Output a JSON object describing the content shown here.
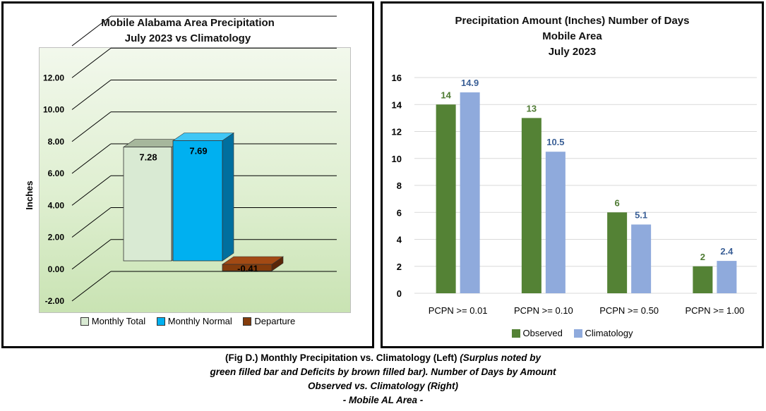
{
  "chart_data": [
    {
      "type": "bar",
      "title": "Mobile Alabama Area Precipitation\nJuly 2023 vs Climatology",
      "title_lines": [
        "Mobile Alabama Area Precipitation",
        "July 2023 vs Climatology"
      ],
      "ylabel": "Inches",
      "xlabel": "",
      "ylim": [
        -2,
        14
      ],
      "yticks": [
        "-2.00",
        "0.00",
        "2.00",
        "4.00",
        "6.00",
        "8.00",
        "10.00",
        "12.00"
      ],
      "grid": true,
      "style": "3d",
      "legend_position": "bottom",
      "series": [
        {
          "name": "Monthly Total",
          "values": [
            7.28
          ],
          "label": "7.28",
          "color": "#d9ead3"
        },
        {
          "name": "Monthly Normal",
          "values": [
            7.69
          ],
          "label": "7.69",
          "color": "#00b0f0"
        },
        {
          "name": "Departure",
          "values": [
            -0.41
          ],
          "label": "-0.41",
          "color": "#843c0c"
        }
      ]
    },
    {
      "type": "bar",
      "title": "Precipitation Amount (Inches) Number of Days\nMobile Area\nJuly 2023",
      "title_lines": [
        "Precipitation Amount (Inches) Number of Days",
        "Mobile Area",
        "July 2023"
      ],
      "xlabel": "",
      "ylabel": "",
      "ylim": [
        0,
        16
      ],
      "yticks": [
        "0",
        "2",
        "4",
        "6",
        "8",
        "10",
        "12",
        "14",
        "16"
      ],
      "grid": true,
      "legend_position": "bottom",
      "categories": [
        "PCPN >= 0.01",
        "PCPN >= 0.10",
        "PCPN >= 0.50",
        "PCPN >= 1.00"
      ],
      "series": [
        {
          "name": "Observed",
          "values": [
            14,
            13,
            6,
            2
          ],
          "labels": [
            "14",
            "13",
            "6",
            "2"
          ],
          "color": "#548235"
        },
        {
          "name": "Climatology",
          "values": [
            14.9,
            10.5,
            5.1,
            2.4
          ],
          "labels": [
            "14.9",
            "10.5",
            "5.1",
            "2.4"
          ],
          "color": "#8faadc"
        }
      ]
    }
  ],
  "caption": {
    "line1_bold": "(Fig D.) Monthly Precipitation vs. Climatology (Left) ",
    "line1_italic": "(Surplus noted by",
    "line2": "green filled bar and Deficits by brown filled bar). Number of Days by Amount",
    "line3": "Observed vs. Climatology (Right)",
    "line4": "- Mobile AL Area -"
  }
}
